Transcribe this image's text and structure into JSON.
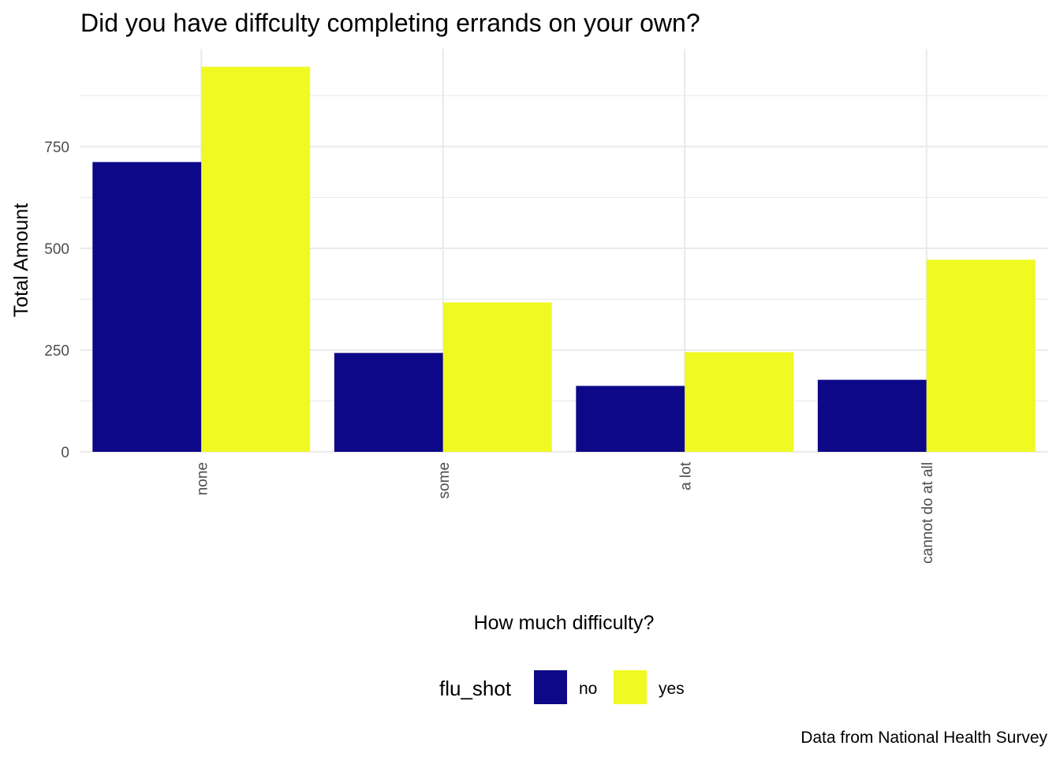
{
  "chart_data": {
    "type": "bar",
    "title": "Did you have diffculty completing errands on your own?",
    "xlabel": "How much difficulty?",
    "ylabel": "Total Amount",
    "caption": "Data from National Health Survey",
    "categories": [
      "none",
      "some",
      "a lot",
      "cannot do at all"
    ],
    "series": [
      {
        "name": "no",
        "values": [
          712,
          243,
          162,
          177
        ],
        "color": "#0d0887"
      },
      {
        "name": "yes",
        "values": [
          946,
          367,
          245,
          472
        ],
        "color": "#f0f921"
      }
    ],
    "ylim": [
      0,
      990
    ],
    "yticks": [
      0,
      250,
      500,
      750
    ],
    "ytick_labels": [
      "0",
      "250",
      "500",
      "750"
    ],
    "legend_title": "flu_shot",
    "legend_position": "bottom",
    "x_tick_rotation": "vertical",
    "grid": true
  }
}
